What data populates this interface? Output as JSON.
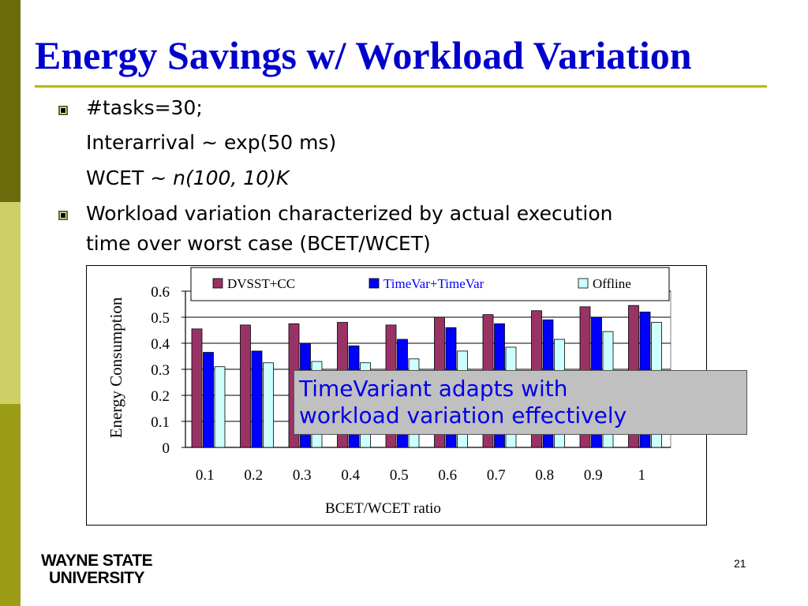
{
  "slide": {
    "title": "Energy Savings w/ Workload Variation",
    "page_number": "21",
    "colors": {
      "title": "#0000cc",
      "rule": "#b8b800",
      "sidebar_dark": "#6b6b0b",
      "sidebar_light": "#cfcf68",
      "sidebar_mid": "#9c9c16",
      "bullet_marker": "#6b6b0b"
    }
  },
  "bullets": [
    {
      "marker": true,
      "lines": [
        {
          "text": "#tasks=30;"
        },
        {
          "text": "Interarrival ~ exp(50 ms)"
        },
        {
          "prefix": "WCET ~ ",
          "italic": "n(100, 10)K"
        }
      ]
    },
    {
      "marker": true,
      "lines": [
        {
          "text": "Workload variation characterized by actual execution"
        },
        {
          "text": "time over worst case (BCET/WCET)"
        }
      ]
    }
  ],
  "callout": {
    "text_line1": "TimeVariant adapts with",
    "text_line2": "workload variation effectively",
    "bg": "#c0c0c0",
    "color": "#0000ee"
  },
  "logo": {
    "line1": "WAYNE STATE",
    "line2": "UNIVERSITY"
  },
  "chart_data": {
    "type": "bar",
    "title": "",
    "xlabel": "BCET/WCET ratio",
    "ylabel": "Energy Consumption",
    "ylim": [
      0,
      0.6
    ],
    "yticks": [
      "0",
      "0.1",
      "0.2",
      "0.3",
      "0.4",
      "0.5",
      "0.6"
    ],
    "grid": true,
    "legend_position": "top",
    "categories": [
      "0.1",
      "0.2",
      "0.3",
      "0.4",
      "0.5",
      "0.6",
      "0.7",
      "0.8",
      "0.9",
      "1"
    ],
    "series": [
      {
        "name": "DVSST+CC",
        "color": "#993366",
        "values": [
          0.455,
          0.47,
          0.475,
          0.48,
          0.47,
          0.5,
          0.51,
          0.525,
          0.54,
          0.545
        ]
      },
      {
        "name": "TimeVar+TimeVar",
        "color": "#0000ff",
        "values": [
          0.365,
          0.37,
          0.4,
          0.39,
          0.415,
          0.46,
          0.475,
          0.49,
          0.5,
          0.52
        ]
      },
      {
        "name": "Offline",
        "color": "#ccffff",
        "values": [
          0.31,
          0.325,
          0.33,
          0.325,
          0.34,
          0.37,
          0.385,
          0.415,
          0.445,
          0.48
        ]
      }
    ],
    "legend_text_colors": [
      "#000000",
      "#0000ff",
      "#000000"
    ]
  }
}
